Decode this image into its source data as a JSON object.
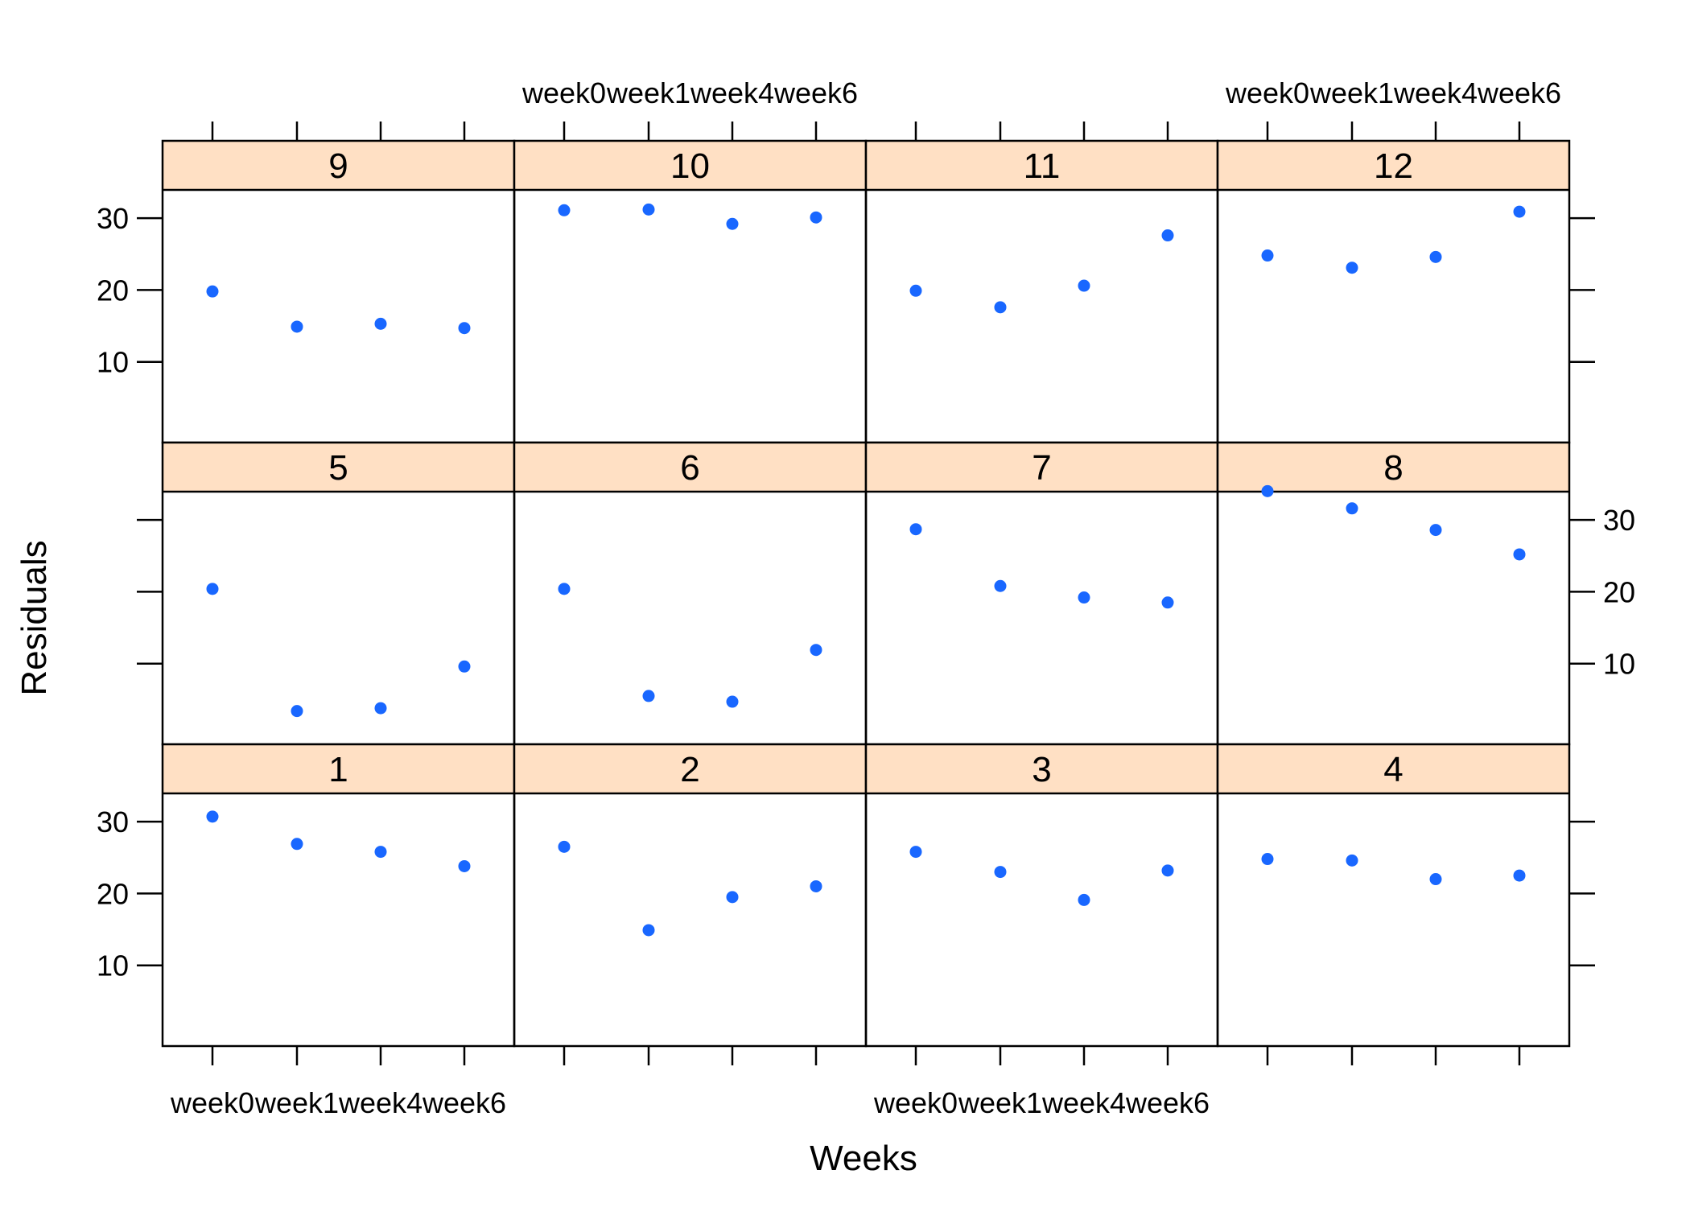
{
  "chart_data": {
    "type": "scatter",
    "xlabel": "Weeks",
    "ylabel": "Residuals",
    "categories": [
      "week0",
      "week1",
      "week4",
      "week6"
    ],
    "yticks": [
      10,
      20,
      30
    ],
    "ylim": [
      0,
      36
    ],
    "grid": false,
    "strip_color": "#FFE0C4",
    "point_color": "#1967FF",
    "layout_order": [
      [
        "9",
        "10",
        "11",
        "12"
      ],
      [
        "5",
        "6",
        "7",
        "8"
      ],
      [
        "1",
        "2",
        "3",
        "4"
      ]
    ],
    "panels": [
      {
        "label": "1",
        "values": [
          30.7,
          26.9,
          25.8,
          23.8
        ]
      },
      {
        "label": "2",
        "values": [
          26.5,
          14.9,
          19.5,
          21.0
        ]
      },
      {
        "label": "3",
        "values": [
          25.8,
          23.0,
          19.1,
          23.2
        ]
      },
      {
        "label": "4",
        "values": [
          24.8,
          24.6,
          22.0,
          22.5
        ]
      },
      {
        "label": "5",
        "values": [
          20.4,
          3.4,
          3.8,
          9.6
        ]
      },
      {
        "label": "6",
        "values": [
          20.4,
          5.5,
          4.7,
          11.9
        ]
      },
      {
        "label": "7",
        "values": [
          28.7,
          20.8,
          19.2,
          18.5
        ]
      },
      {
        "label": "8",
        "values": [
          34.0,
          31.6,
          28.6,
          25.2
        ]
      },
      {
        "label": "9",
        "values": [
          19.8,
          14.9,
          15.3,
          14.7
        ]
      },
      {
        "label": "10",
        "values": [
          31.1,
          31.2,
          29.2,
          30.1
        ]
      },
      {
        "label": "11",
        "values": [
          19.9,
          17.6,
          20.6,
          27.6
        ]
      },
      {
        "label": "12",
        "values": [
          24.8,
          23.1,
          24.6,
          30.9
        ]
      }
    ]
  }
}
